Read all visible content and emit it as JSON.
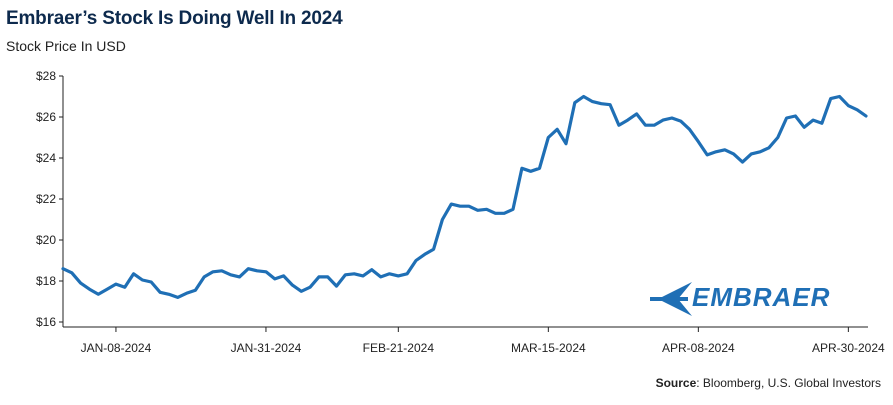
{
  "title": "Embraer’s Stock Is Doing Well In 2024",
  "subtitle": "Stock Price In USD",
  "source_label": "Source",
  "source_text": ": Bloomberg, U.S. Global Investors",
  "logo_text": "EMBRAER",
  "colors": {
    "line": "#1f6fb5",
    "title": "#0d2a4d",
    "logo": "#1f6fb5"
  },
  "chart_data": {
    "type": "line",
    "title": "Embraer’s Stock Is Doing Well In 2024",
    "subtitle": "Stock Price In USD",
    "xlabel": "",
    "ylabel": "",
    "ylim": [
      16,
      28
    ],
    "y_ticks": [
      16,
      18,
      20,
      22,
      24,
      26,
      28
    ],
    "y_tick_labels": [
      "$16",
      "$18",
      "$20",
      "$22",
      "$24",
      "$26",
      "$28"
    ],
    "x_tick_labels": [
      "JAN-08-2024",
      "JAN-31-2024",
      "FEB-21-2024",
      "MAR-15-2024",
      "APR-08-2024",
      "APR-30-2024"
    ],
    "x_tick_index": [
      6,
      23,
      38,
      55,
      72,
      89
    ],
    "grid": false,
    "series": [
      {
        "values": [
          18.6,
          18.4,
          17.9,
          17.6,
          17.35,
          17.6,
          17.85,
          17.7,
          18.35,
          18.05,
          17.95,
          17.45,
          17.35,
          17.2,
          17.4,
          17.55,
          18.2,
          18.45,
          18.5,
          18.3,
          18.2,
          18.6,
          18.5,
          18.45,
          18.1,
          18.25,
          17.8,
          17.5,
          17.7,
          18.2,
          18.2,
          17.75,
          18.3,
          18.35,
          18.25,
          18.55,
          18.2,
          18.35,
          18.25,
          18.35,
          19.0,
          19.3,
          19.55,
          21.0,
          21.75,
          21.65,
          21.65,
          21.45,
          21.5,
          21.3,
          21.3,
          21.5,
          23.5,
          23.35,
          23.5,
          25.0,
          25.4,
          24.7,
          26.7,
          27.0,
          26.75,
          26.65,
          26.6,
          25.6,
          25.85,
          26.15,
          25.6,
          25.6,
          25.85,
          25.95,
          25.8,
          25.4,
          24.8,
          24.15,
          24.3,
          24.4,
          24.2,
          23.8,
          24.2,
          24.3,
          24.5,
          25.0,
          25.95,
          26.05,
          25.5,
          25.85,
          25.7,
          26.9,
          27.0,
          26.55,
          26.35,
          26.05
        ]
      }
    ]
  }
}
